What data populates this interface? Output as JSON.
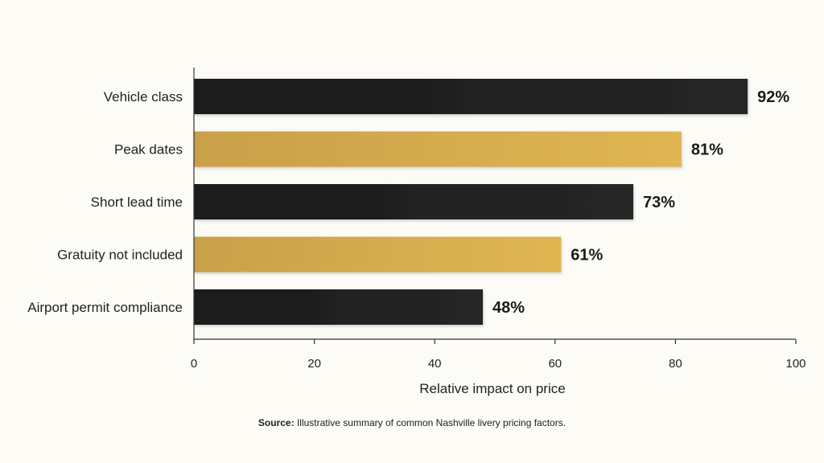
{
  "chart_data": {
    "type": "bar",
    "orientation": "horizontal",
    "categories": [
      "Vehicle class",
      "Peak dates",
      "Short lead time",
      "Gratuity not included",
      "Airport permit compliance"
    ],
    "values": [
      92,
      81,
      73,
      61,
      48
    ],
    "value_labels": [
      "92%",
      "81%",
      "73%",
      "61%",
      "48%"
    ],
    "bar_colors": [
      "#1f1f1f",
      "#d8ad4c",
      "#1f1f1f",
      "#d8ad4c",
      "#1f1f1f"
    ],
    "xlabel": "Relative impact on price",
    "xlim": [
      0,
      100
    ],
    "xticks": [
      0,
      20,
      40,
      60,
      80,
      100
    ],
    "xtick_labels": [
      "0",
      "20",
      "40",
      "60",
      "80",
      "100"
    ],
    "grid": false,
    "legend": false
  },
  "source": {
    "label": "Source:",
    "text": "Illustrative summary of common Nashville livery pricing factors."
  }
}
